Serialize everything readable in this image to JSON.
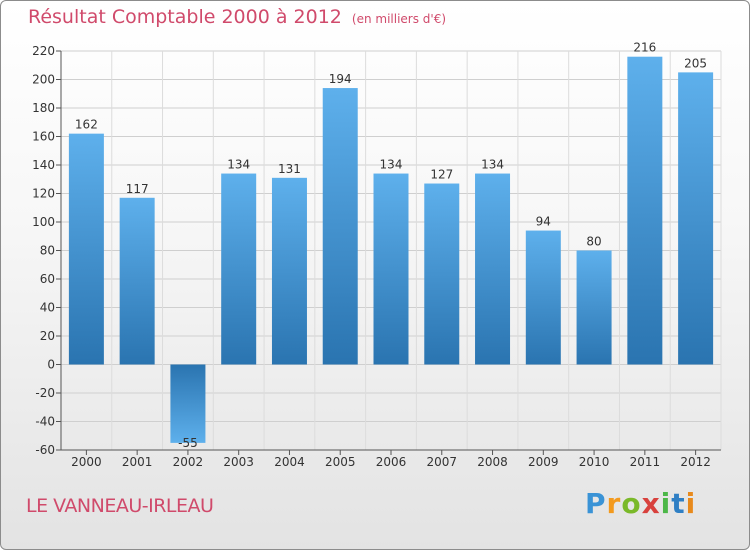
{
  "title": "Résultat Comptable 2000 à 2012",
  "subtitle": "(en milliers d'€)",
  "place": "LE VANNEAU-IRLEAU",
  "logo": {
    "text": "Proxiti",
    "letters": [
      "P",
      "r",
      "o",
      "x",
      "i",
      "t",
      "i"
    ]
  },
  "chart_data": {
    "type": "bar",
    "title": "Résultat Comptable 2000 à 2012",
    "xlabel": "",
    "ylabel": "",
    "categories": [
      "2000",
      "2001",
      "2002",
      "2003",
      "2004",
      "2005",
      "2006",
      "2007",
      "2008",
      "2009",
      "2010",
      "2011",
      "2012"
    ],
    "values": [
      162,
      117,
      -55,
      134,
      131,
      194,
      134,
      127,
      134,
      94,
      80,
      216,
      205
    ],
    "ylim": [
      -60,
      220
    ],
    "yticks": [
      -60,
      -40,
      -20,
      0,
      20,
      40,
      60,
      80,
      100,
      120,
      140,
      160,
      180,
      200,
      220
    ],
    "grid": true,
    "bar_color": "#4a9ee0"
  }
}
